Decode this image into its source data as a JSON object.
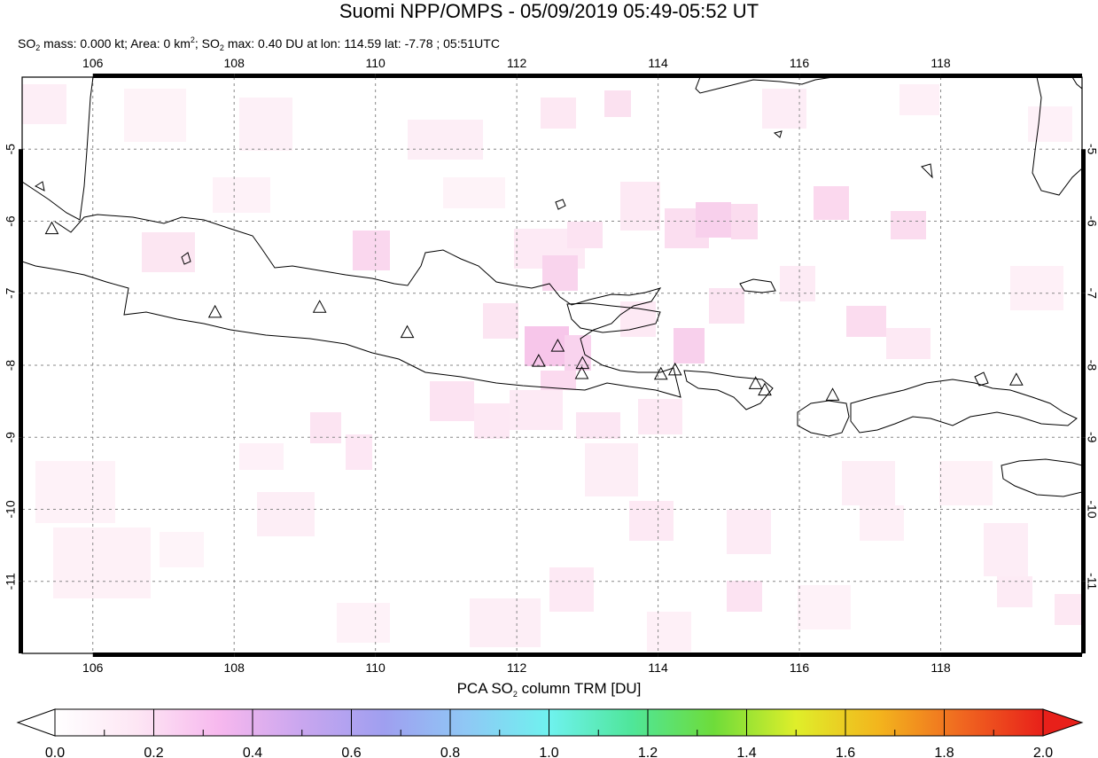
{
  "header": {
    "title": "Suomi NPP/OMPS - 05/09/2019 05:49-05:52 UT",
    "subtitle": {
      "mass_label": "SO",
      "mass_sub": "2",
      "mass_text": " mass: 0.000 kt; Area: 0 km",
      "area_sup": "2",
      "max_label": "; SO",
      "max_sub": "2",
      "max_text": " max: 0.40 DU at lon: 114.59 lat: -7.78 ; 05:51UTC"
    }
  },
  "map": {
    "lon_range": [
      105,
      120
    ],
    "lat_range": [
      -12,
      -4
    ],
    "lon_ticks": [
      "106",
      "108",
      "110",
      "112",
      "114",
      "116",
      "118"
    ],
    "lat_ticks": [
      "-5",
      "-6",
      "-7",
      "-8",
      "-9",
      "-10",
      "-11"
    ],
    "volcanoes": [
      {
        "lon": 105.42,
        "lat": -6.1
      },
      {
        "lon": 107.73,
        "lat": -7.26
      },
      {
        "lon": 109.21,
        "lat": -7.19
      },
      {
        "lon": 110.45,
        "lat": -7.54
      },
      {
        "lon": 112.31,
        "lat": -7.94
      },
      {
        "lon": 112.58,
        "lat": -7.73
      },
      {
        "lon": 112.93,
        "lat": -7.97
      },
      {
        "lon": 112.92,
        "lat": -8.11
      },
      {
        "lon": 114.04,
        "lat": -8.12
      },
      {
        "lon": 114.24,
        "lat": -8.06
      },
      {
        "lon": 115.38,
        "lat": -8.25
      },
      {
        "lon": 115.51,
        "lat": -8.34
      },
      {
        "lon": 116.47,
        "lat": -8.41
      },
      {
        "lon": 119.07,
        "lat": -8.2
      }
    ]
  },
  "colorbar": {
    "title_prefix": "PCA SO",
    "title_sub": "2",
    "title_suffix": " column TRM [DU]",
    "min": 0.0,
    "max": 2.0,
    "tick_labels": [
      "0.0",
      "0.2",
      "0.4",
      "0.6",
      "0.8",
      "1.0",
      "1.2",
      "1.4",
      "1.6",
      "1.8",
      "2.0"
    ],
    "colors": [
      "#ffffff",
      "#fde6f4",
      "#f7b8ee",
      "#c9a6ef",
      "#9f9ff0",
      "#8fc8f5",
      "#6ff2ef",
      "#4fe69a",
      "#6edc3a",
      "#dfee2a",
      "#f3b51d",
      "#f06820",
      "#e8201a"
    ]
  }
}
